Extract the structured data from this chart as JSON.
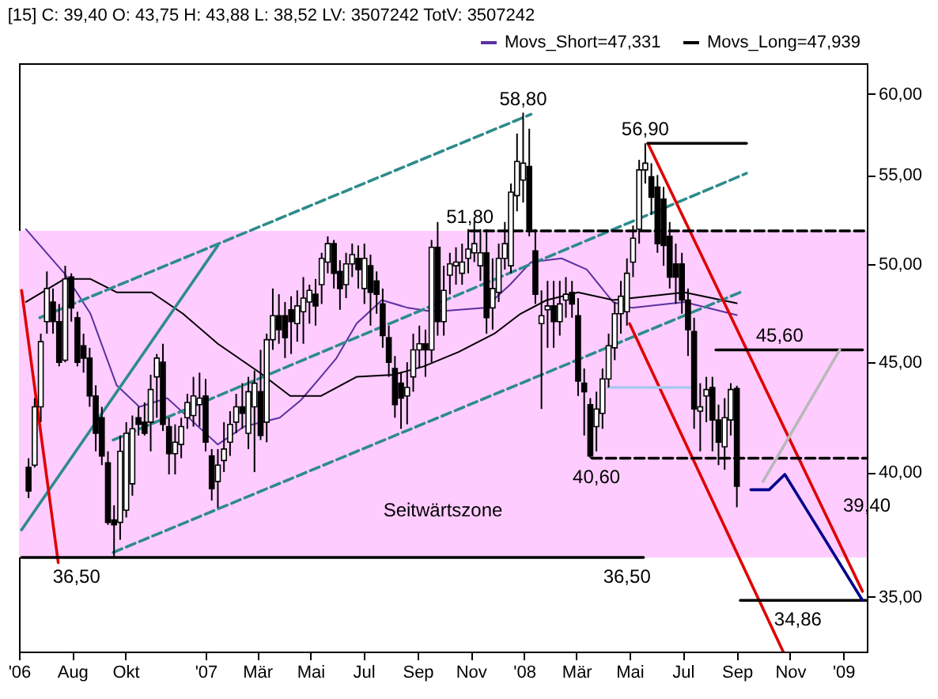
{
  "chart_data": {
    "type": "candlestick",
    "title": "[15] C: 39,40 O: 43,75 H: 43,88 L: 38,52 LV: 3507242 TotV: 3507242",
    "log": true,
    "legend": "top right",
    "xlim": [
      "2006-06-01",
      "2009-01-28"
    ],
    "xticks": [
      {
        "value": "2006-06-01",
        "label": "'06"
      },
      {
        "value": "2006-08-01",
        "label": "Aug"
      },
      {
        "value": "2006-10-01",
        "label": "Okt"
      },
      {
        "value": "2007-01-01",
        "label": "'07"
      },
      {
        "value": "2007-03-01",
        "label": "Mär"
      },
      {
        "value": "2007-05-01",
        "label": "Mai"
      },
      {
        "value": "2007-07-01",
        "label": "Jul"
      },
      {
        "value": "2007-09-01",
        "label": "Sep"
      },
      {
        "value": "2007-11-01",
        "label": "Nov"
      },
      {
        "value": "2008-01-01",
        "label": "'08"
      },
      {
        "value": "2008-03-01",
        "label": "Mär"
      },
      {
        "value": "2008-05-01",
        "label": "Mai"
      },
      {
        "value": "2008-07-01",
        "label": "Jul"
      },
      {
        "value": "2008-09-01",
        "label": "Sep"
      },
      {
        "value": "2008-11-01",
        "label": "Nov"
      },
      {
        "value": "2009-01-01",
        "label": "'09"
      }
    ],
    "ylim": [
      33,
      62
    ],
    "yticks": [
      {
        "value": 35,
        "label": "35,00"
      },
      {
        "value": 40,
        "label": "40,00"
      },
      {
        "value": 45,
        "label": "45,00"
      },
      {
        "value": 50,
        "label": "50,00"
      },
      {
        "value": 55,
        "label": "55,00"
      },
      {
        "value": 60,
        "label": "60,00"
      }
    ],
    "x": [
      "2006-06-12",
      "2006-06-19",
      "2006-06-26",
      "2006-07-03",
      "2006-07-10",
      "2006-07-17",
      "2006-07-24",
      "2006-07-31",
      "2006-08-07",
      "2006-08-14",
      "2006-08-21",
      "2006-08-28",
      "2006-09-04",
      "2006-09-11",
      "2006-09-18",
      "2006-09-25",
      "2006-10-02",
      "2006-10-09",
      "2006-10-16",
      "2006-10-23",
      "2006-10-30",
      "2006-11-06",
      "2006-11-13",
      "2006-11-20",
      "2006-11-27",
      "2006-12-04",
      "2006-12-11",
      "2006-12-18",
      "2006-12-25",
      "2007-01-01",
      "2007-01-08",
      "2007-01-15",
      "2007-01-22",
      "2007-01-29",
      "2007-02-05",
      "2007-02-12",
      "2007-02-19",
      "2007-02-26",
      "2007-03-05",
      "2007-03-12",
      "2007-03-19",
      "2007-03-26",
      "2007-04-02",
      "2007-04-09",
      "2007-04-16",
      "2007-04-23",
      "2007-04-30",
      "2007-05-07",
      "2007-05-14",
      "2007-05-21",
      "2007-05-28",
      "2007-06-04",
      "2007-06-11",
      "2007-06-18",
      "2007-06-25",
      "2007-07-02",
      "2007-07-09",
      "2007-07-16",
      "2007-07-23",
      "2007-07-30",
      "2007-08-06",
      "2007-08-13",
      "2007-08-20",
      "2007-08-27",
      "2007-09-03",
      "2007-09-10",
      "2007-09-17",
      "2007-09-24",
      "2007-10-01",
      "2007-10-08",
      "2007-10-15",
      "2007-10-22",
      "2007-10-29",
      "2007-11-05",
      "2007-11-12",
      "2007-11-19",
      "2007-11-26",
      "2007-12-03",
      "2007-12-10",
      "2007-12-17",
      "2007-12-24",
      "2007-12-31",
      "2008-01-07",
      "2008-01-14",
      "2008-01-21",
      "2008-01-28",
      "2008-02-04",
      "2008-02-11",
      "2008-02-18",
      "2008-02-25",
      "2008-03-03",
      "2008-03-10",
      "2008-03-17",
      "2008-03-24",
      "2008-03-31",
      "2008-04-07",
      "2008-04-14",
      "2008-04-21",
      "2008-04-28",
      "2008-05-05",
      "2008-05-12",
      "2008-05-19",
      "2008-05-26",
      "2008-06-02",
      "2008-06-09",
      "2008-06-16",
      "2008-06-23",
      "2008-06-30",
      "2008-07-07",
      "2008-07-14",
      "2008-07-21",
      "2008-07-28",
      "2008-08-04",
      "2008-08-11",
      "2008-08-18",
      "2008-08-25",
      "2008-09-01"
    ],
    "ohlc": [
      [
        40.2,
        40.6,
        38.9,
        39.2
      ],
      [
        40.3,
        43.3,
        40.2,
        42.9
      ],
      [
        42.9,
        46.4,
        42.2,
        46.0
      ],
      [
        47.0,
        49.6,
        46.4,
        48.7
      ],
      [
        48.0,
        48.7,
        46.4,
        47.0
      ],
      [
        47.0,
        47.9,
        44.8,
        45.0
      ],
      [
        45.1,
        49.9,
        45.0,
        49.2
      ],
      [
        49.3,
        49.5,
        47.0,
        47.7
      ],
      [
        47.2,
        47.5,
        44.8,
        45.0
      ],
      [
        45.8,
        46.4,
        44.5,
        45.2
      ],
      [
        45.2,
        45.7,
        42.9,
        43.4
      ],
      [
        43.4,
        43.9,
        40.9,
        41.7
      ],
      [
        42.4,
        42.9,
        40.3,
        40.7
      ],
      [
        40.4,
        40.9,
        37.8,
        37.9
      ],
      [
        38.0,
        38.6,
        36.5,
        37.8
      ],
      [
        37.9,
        41.6,
        37.2,
        40.9
      ],
      [
        38.4,
        42.2,
        38.1,
        41.7
      ],
      [
        39.5,
        42.5,
        39.0,
        41.9
      ],
      [
        42.4,
        42.9,
        41.6,
        42.1
      ],
      [
        42.2,
        43.1,
        41.6,
        41.7
      ],
      [
        42.2,
        44.4,
        40.9,
        43.7
      ],
      [
        44.3,
        45.4,
        42.4,
        45.2
      ],
      [
        45.0,
        45.9,
        41.8,
        42.1
      ],
      [
        42.0,
        42.4,
        39.9,
        40.8
      ],
      [
        40.8,
        42.1,
        39.9,
        41.3
      ],
      [
        41.2,
        42.4,
        40.6,
        42.0
      ],
      [
        42.4,
        43.5,
        41.9,
        43.1
      ],
      [
        42.5,
        44.3,
        42.0,
        43.4
      ],
      [
        43.0,
        44.5,
        42.0,
        43.3
      ],
      [
        43.4,
        44.2,
        40.9,
        41.3
      ],
      [
        40.7,
        41.0,
        38.8,
        39.3
      ],
      [
        39.6,
        41.0,
        38.5,
        40.3
      ],
      [
        40.5,
        42.2,
        40.0,
        41.0
      ],
      [
        41.3,
        42.7,
        40.7,
        42.1
      ],
      [
        42.2,
        43.5,
        41.7,
        42.9
      ],
      [
        42.9,
        44.0,
        41.9,
        42.6
      ],
      [
        41.7,
        44.3,
        41.0,
        43.6
      ],
      [
        42.9,
        44.6,
        40.0,
        44.0
      ],
      [
        43.6,
        45.6,
        41.4,
        41.6
      ],
      [
        42.2,
        46.4,
        41.3,
        46.1
      ],
      [
        46.1,
        48.7,
        45.6,
        47.3
      ],
      [
        47.3,
        48.4,
        45.9,
        46.6
      ],
      [
        47.3,
        48.0,
        45.2,
        46.2
      ],
      [
        47.6,
        48.3,
        45.4,
        47.0
      ],
      [
        46.9,
        48.6,
        46.0,
        47.8
      ],
      [
        47.5,
        49.3,
        45.9,
        48.2
      ],
      [
        48.0,
        48.9,
        46.9,
        48.6
      ],
      [
        48.4,
        49.2,
        46.8,
        47.8
      ],
      [
        48.9,
        50.6,
        47.9,
        50.3
      ],
      [
        50.1,
        51.5,
        49.5,
        51.1
      ],
      [
        51.1,
        51.3,
        48.7,
        49.5
      ],
      [
        49.6,
        50.2,
        47.6,
        48.7
      ],
      [
        48.9,
        50.6,
        48.2,
        50.0
      ],
      [
        50.0,
        51.1,
        49.3,
        50.5
      ],
      [
        50.3,
        51.0,
        48.7,
        49.7
      ],
      [
        48.7,
        51.1,
        47.9,
        50.3
      ],
      [
        49.9,
        50.5,
        46.8,
        48.5
      ],
      [
        49.1,
        49.6,
        47.4,
        48.4
      ],
      [
        47.9,
        48.7,
        45.7,
        46.3
      ],
      [
        46.2,
        46.8,
        44.3,
        45.0
      ],
      [
        44.7,
        45.3,
        42.4,
        43.0
      ],
      [
        44.0,
        44.5,
        41.9,
        43.3
      ],
      [
        43.4,
        45.0,
        42.1,
        43.8
      ],
      [
        44.3,
        46.4,
        43.6,
        45.6
      ],
      [
        45.6,
        46.8,
        44.7,
        45.9
      ],
      [
        45.9,
        46.6,
        44.3,
        45.6
      ],
      [
        45.6,
        51.3,
        45.0,
        50.9
      ],
      [
        50.9,
        52.3,
        46.3,
        47.0
      ],
      [
        47.0,
        49.9,
        46.3,
        48.6
      ],
      [
        49.4,
        50.6,
        48.4,
        50.0
      ],
      [
        49.9,
        50.9,
        48.9,
        50.1
      ],
      [
        49.5,
        51.1,
        48.9,
        50.1
      ],
      [
        50.3,
        51.9,
        49.5,
        50.8
      ],
      [
        50.6,
        52.3,
        50.1,
        51.1
      ],
      [
        49.9,
        51.9,
        49.1,
        50.6
      ],
      [
        50.6,
        51.9,
        46.4,
        47.2
      ],
      [
        47.7,
        50.3,
        46.6,
        48.7
      ],
      [
        48.5,
        51.1,
        48.0,
        50.3
      ],
      [
        50.3,
        52.3,
        49.7,
        51.1
      ],
      [
        49.9,
        54.5,
        49.5,
        54.0
      ],
      [
        53.8,
        57.5,
        52.9,
        55.8
      ],
      [
        54.7,
        58.8,
        53.4,
        55.7
      ],
      [
        55.5,
        57.8,
        51.5,
        51.9
      ],
      [
        50.7,
        51.9,
        47.9,
        48.4
      ],
      [
        46.9,
        48.6,
        42.8,
        47.3
      ],
      [
        47.6,
        49.1,
        45.7,
        47.8
      ],
      [
        47.8,
        49.1,
        45.7,
        47.0
      ],
      [
        47.0,
        49.1,
        46.3,
        47.9
      ],
      [
        48.1,
        49.3,
        47.2,
        48.4
      ],
      [
        48.5,
        49.1,
        47.2,
        47.9
      ],
      [
        47.3,
        48.2,
        43.4,
        44.1
      ],
      [
        44.0,
        44.7,
        41.6,
        43.6
      ],
      [
        43.0,
        43.3,
        40.6,
        40.7
      ],
      [
        42.0,
        43.6,
        40.9,
        42.8
      ],
      [
        42.6,
        44.7,
        41.9,
        44.2
      ],
      [
        44.2,
        46.4,
        43.8,
        45.8
      ],
      [
        45.7,
        48.0,
        45.1,
        47.4
      ],
      [
        47.4,
        49.1,
        46.4,
        48.3
      ],
      [
        47.5,
        50.3,
        46.8,
        49.5
      ],
      [
        50.1,
        52.1,
        49.3,
        51.4
      ],
      [
        51.9,
        55.9,
        51.1,
        55.3
      ],
      [
        55.3,
        56.9,
        54.5,
        55.7
      ],
      [
        54.9,
        55.7,
        52.7,
        53.7
      ],
      [
        54.3,
        55.0,
        50.6,
        51.1
      ],
      [
        53.6,
        54.3,
        49.9,
        51.0
      ],
      [
        51.5,
        52.3,
        48.7,
        49.3
      ],
      [
        50.0,
        51.1,
        47.9,
        49.3
      ],
      [
        50.0,
        50.6,
        47.4,
        48.1
      ],
      [
        48.1,
        48.7,
        45.3,
        46.6
      ],
      [
        46.5,
        47.2,
        41.9,
        42.8
      ],
      [
        42.7,
        44.0,
        40.9,
        42.9
      ],
      [
        43.4,
        44.3,
        42.2,
        43.7
      ],
      [
        43.8,
        44.3,
        40.9,
        42.3
      ],
      [
        42.3,
        43.0,
        40.3,
        41.3
      ],
      [
        41.1,
        43.3,
        40.1,
        42.4
      ],
      [
        42.3,
        44.0,
        41.6,
        43.7
      ],
      [
        43.75,
        43.88,
        38.52,
        39.4
      ]
    ],
    "series": [
      {
        "type": "line",
        "name": "Movs_Short=47,331",
        "color": "#5a32a0",
        "x": [
          "2006-06-09",
          "2006-07-23",
          "2006-08-22",
          "2006-09-21",
          "2006-10-17",
          "2006-11-18",
          "2006-12-18",
          "2007-01-15",
          "2007-02-14",
          "2007-03-27",
          "2007-04-20",
          "2007-05-13",
          "2007-05-31",
          "2007-06-23",
          "2007-07-22",
          "2007-08-21",
          "2007-09-19",
          "2007-11-17",
          "2007-12-16",
          "2008-01-09",
          "2008-02-13",
          "2008-03-13",
          "2008-04-12",
          "2008-05-04",
          "2008-07-03",
          "2008-09-01"
        ],
        "values": [
          51.9,
          49.5,
          47.4,
          43.9,
          42.9,
          43.3,
          42.2,
          41.2,
          42.0,
          42.4,
          43.2,
          44.3,
          45.2,
          46.9,
          48.1,
          47.7,
          47.5,
          47.7,
          48.9,
          50.1,
          50.3,
          49.7,
          48.0,
          47.7,
          48.0,
          47.33
        ]
      },
      {
        "type": "line",
        "name": "Movs_Long=47,939",
        "color": "#000000",
        "x": [
          "2006-06-09",
          "2006-07-23",
          "2006-08-22",
          "2006-09-21",
          "2006-10-31",
          "2006-12-06",
          "2007-01-15",
          "2007-03-04",
          "2007-04-08",
          "2007-05-13",
          "2007-06-23",
          "2007-08-04",
          "2007-09-08",
          "2007-10-18",
          "2007-11-28",
          "2007-12-28",
          "2008-01-27",
          "2008-03-03",
          "2008-04-12",
          "2008-07-03",
          "2008-09-01"
        ],
        "values": [
          48.0,
          49.2,
          49.2,
          48.5,
          48.5,
          47.4,
          45.9,
          44.5,
          43.4,
          43.4,
          44.3,
          44.4,
          44.8,
          45.5,
          46.4,
          47.4,
          48.1,
          48.5,
          48.1,
          48.5,
          47.94
        ]
      },
      {
        "type": "line",
        "color": "#2e8b8b",
        "line_style": "dashed",
        "x": [
          "2006-06-25",
          "2008-01-09"
        ],
        "values": [
          47.2,
          58.7
        ]
      },
      {
        "type": "line",
        "color": "#2e8b8b",
        "line_style": "dashed",
        "x": [
          "2006-09-17",
          "2008-09-12"
        ],
        "values": [
          41.4,
          55.1
        ]
      },
      {
        "type": "line",
        "color": "#2e8b8b",
        "line_style": "dashed",
        "x": [
          "2006-09-17",
          "2008-09-05"
        ],
        "values": [
          36.7,
          48.5
        ]
      },
      {
        "type": "line",
        "color": "#2e8b8b",
        "x": [
          "2006-06-04",
          "2007-01-15"
        ],
        "values": [
          37.6,
          51.0
        ]
      },
      {
        "type": "line",
        "color": "#e00000",
        "x": [
          "2006-06-04",
          "2006-07-16"
        ],
        "values": [
          48.6,
          36.3
        ]
      },
      {
        "type": "line",
        "color": "#e00000",
        "x": [
          "2008-05-22",
          "2009-01-23"
        ],
        "values": [
          56.9,
          35.2
        ]
      },
      {
        "type": "line",
        "color": "#e00000",
        "x": [
          "2008-05-01",
          "2008-10-24"
        ],
        "values": [
          46.9,
          33.0
        ]
      },
      {
        "type": "line",
        "color": "#000000",
        "x": [
          "2006-06-04",
          "2008-05-17"
        ],
        "values": [
          36.5,
          36.5
        ]
      },
      {
        "type": "line",
        "color": "#000000",
        "line_style": "dashed",
        "x": [
          "2007-10-31",
          "2009-01-27"
        ],
        "values": [
          51.8,
          51.8
        ]
      },
      {
        "type": "line",
        "color": "#000000",
        "line_style": "dashed",
        "x": [
          "2008-03-19",
          "2009-01-27"
        ],
        "values": [
          40.6,
          40.6
        ]
      },
      {
        "type": "line",
        "color": "#000000",
        "x": [
          "2008-05-22",
          "2008-09-12"
        ],
        "values": [
          56.9,
          56.9
        ]
      },
      {
        "type": "line",
        "color": "#000000",
        "x": [
          "2008-08-08",
          "2009-01-23"
        ],
        "values": [
          45.6,
          45.6
        ]
      },
      {
        "type": "line",
        "color": "#000000",
        "x": [
          "2008-09-05",
          "2009-01-27"
        ],
        "values": [
          34.86,
          34.86
        ]
      },
      {
        "type": "line",
        "color": "#a8c8f0",
        "x": [
          "2008-04-06",
          "2008-07-14"
        ],
        "values": [
          43.8,
          43.8
        ]
      },
      {
        "type": "line",
        "color": "#b8b8b8",
        "x": [
          "2008-10-01",
          "2008-12-28"
        ],
        "values": [
          39.6,
          45.6
        ]
      },
      {
        "type": "line",
        "color": "#00008b",
        "x": [
          "2008-09-17",
          "2008-10-08",
          "2008-10-26",
          "2009-01-23"
        ],
        "values": [
          39.25,
          39.25,
          39.9,
          34.86
        ]
      }
    ],
    "bands": [
      {
        "axis": "y",
        "from": 36.5,
        "to": 51.8,
        "label": "Seitwärtszone",
        "color": "#ffccff"
      }
    ],
    "annotations": [
      {
        "text": "58,80",
        "x": "2007-12-31",
        "y": 58.8
      },
      {
        "text": "56,90",
        "x": "2008-05-19",
        "y": 56.9
      },
      {
        "text": "51,80",
        "x": "2007-10-31",
        "y": 51.8
      },
      {
        "text": "45,60",
        "x": "2008-10-20",
        "y": 45.6
      },
      {
        "text": "40,60",
        "x": "2008-03-24",
        "y": 40.6
      },
      {
        "text": "36,50",
        "x": "2006-08-06",
        "y": 36.5
      },
      {
        "text": "36,50",
        "x": "2008-04-28",
        "y": 36.5
      },
      {
        "text": "34,86",
        "x": "2008-11-10",
        "y": 34.86
      },
      {
        "text": "39,40",
        "x": "2009-01-28",
        "y": 39.4
      }
    ]
  }
}
